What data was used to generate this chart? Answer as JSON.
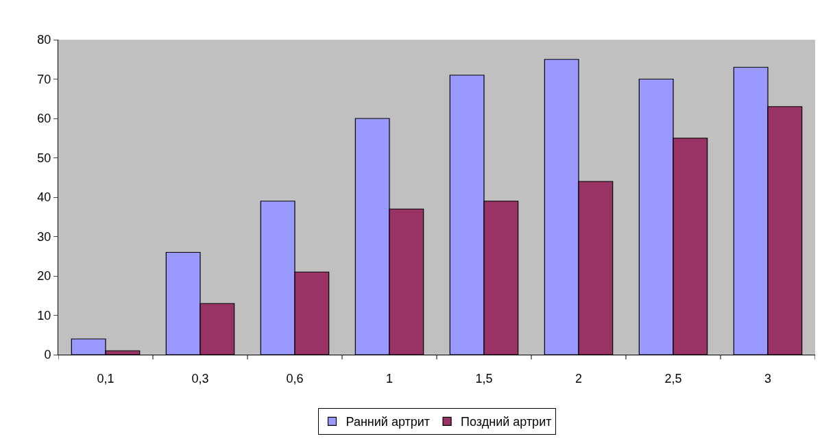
{
  "chart_data": {
    "type": "bar",
    "categories": [
      "0,1",
      "0,3",
      "0,6",
      "1",
      "1,5",
      "2",
      "2,5",
      "3"
    ],
    "series": [
      {
        "name": "Ранний артрит",
        "color": "#9999ff",
        "values": [
          4,
          26,
          39,
          60,
          71,
          75,
          70,
          73
        ]
      },
      {
        "name": "Поздний артрит",
        "color": "#993366",
        "values": [
          1,
          13,
          21,
          37,
          39,
          44,
          55,
          63
        ]
      }
    ],
    "ylim": [
      0,
      80
    ],
    "yticks": [
      0,
      10,
      20,
      30,
      40,
      50,
      60,
      70,
      80
    ],
    "grid": false,
    "legend": "bottom"
  }
}
